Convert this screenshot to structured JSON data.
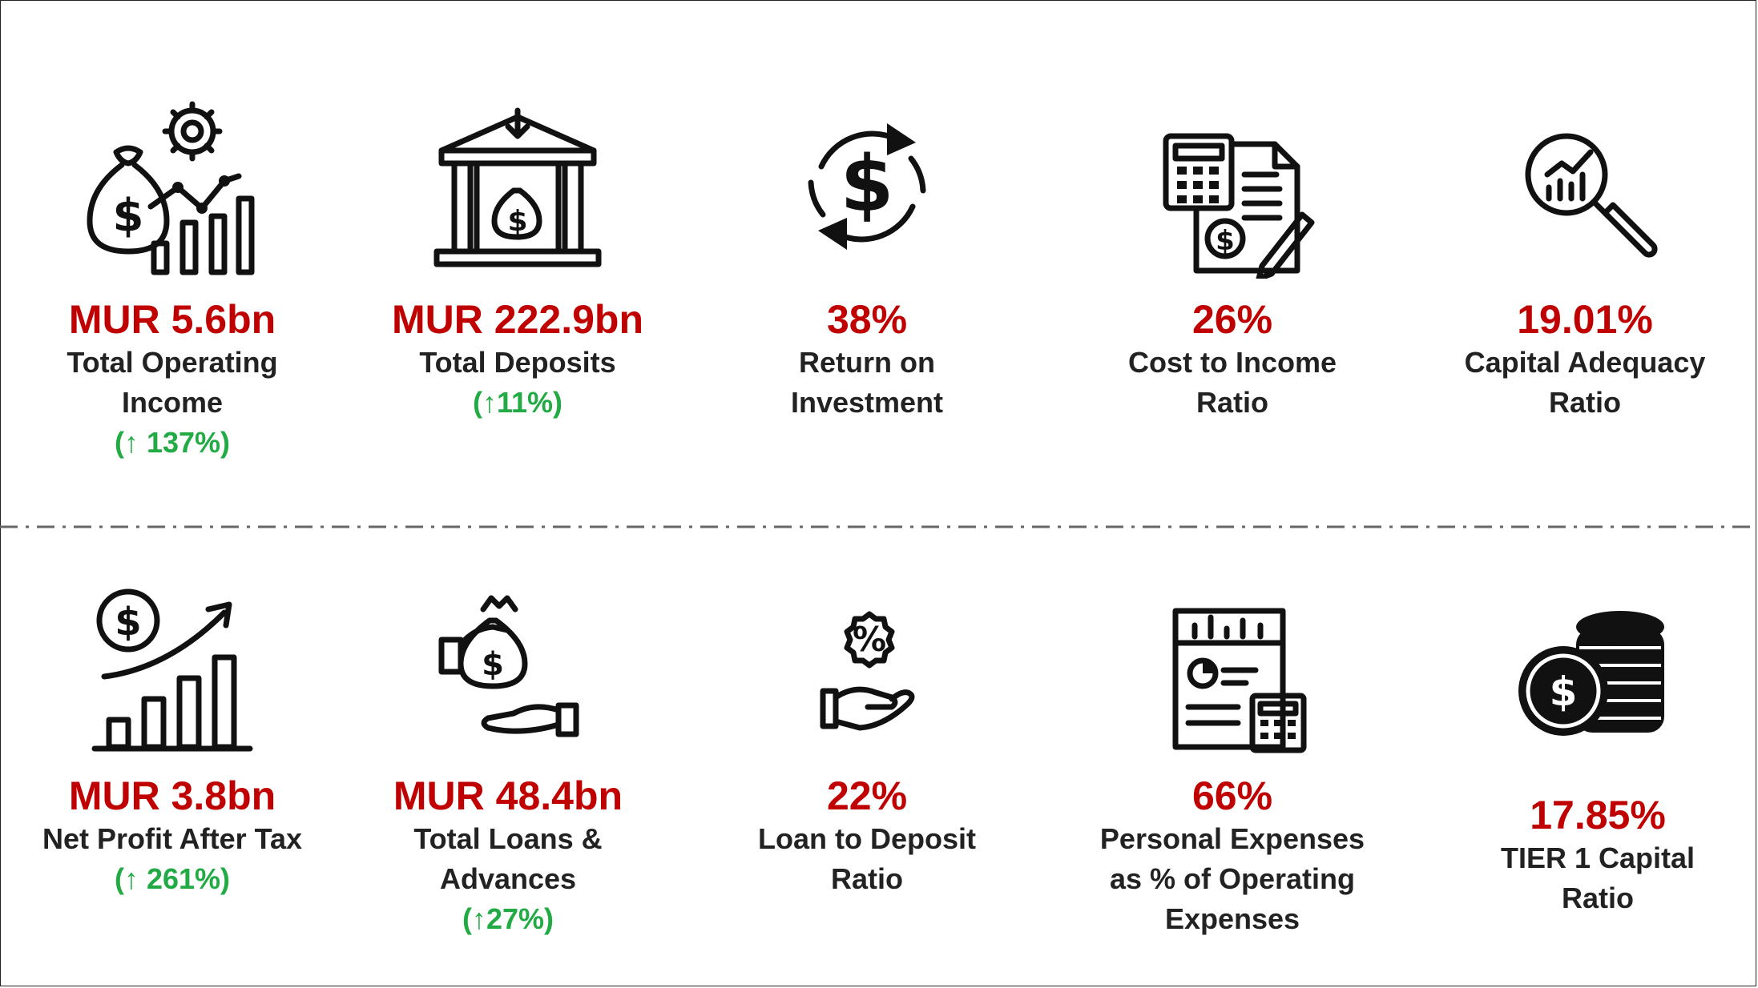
{
  "kpis_top": [
    {
      "icon": "money-bag-growth-icon",
      "value": "MUR 5.6bn",
      "label": [
        "Total Operating",
        "Income"
      ],
      "growth": "(↑ 137%)"
    },
    {
      "icon": "bank-deposit-icon",
      "value": "MUR 222.9bn",
      "label": [
        "Total Deposits"
      ],
      "growth": "(↑11%)"
    },
    {
      "icon": "dollar-cycle-icon",
      "value": "38%",
      "label": [
        "Return on",
        "Investment"
      ],
      "growth": ""
    },
    {
      "icon": "calculator-invoice-icon",
      "value": "26%",
      "label": [
        "Cost to Income",
        "Ratio"
      ],
      "growth": ""
    },
    {
      "icon": "magnifier-chart-icon",
      "value": "19.01%",
      "label": [
        "Capital Adequacy",
        "Ratio"
      ],
      "growth": ""
    }
  ],
  "kpis_bottom": [
    {
      "icon": "profit-growth-chart-icon",
      "value": "MUR 3.8bn",
      "label": [
        "Net Profit After Tax"
      ],
      "growth": "(↑ 261%)"
    },
    {
      "icon": "hand-money-bag-icon",
      "value": "MUR 48.4bn",
      "label": [
        "Total Loans &",
        "Advances"
      ],
      "growth": "(↑27%)"
    },
    {
      "icon": "hand-percent-icon",
      "value": "22%",
      "label": [
        "Loan to Deposit",
        "Ratio"
      ],
      "growth": ""
    },
    {
      "icon": "report-calculator-icon",
      "value": "66%",
      "label": [
        "Personal Expenses",
        "as % of Operating",
        "Expenses"
      ],
      "growth": ""
    },
    {
      "icon": "coin-stack-icon",
      "value": "17.85%",
      "label": [
        "TIER 1 Capital",
        "Ratio"
      ],
      "growth": ""
    }
  ],
  "colors": {
    "value": "#c00000",
    "growth": "#22aa44",
    "label": "#222222"
  }
}
